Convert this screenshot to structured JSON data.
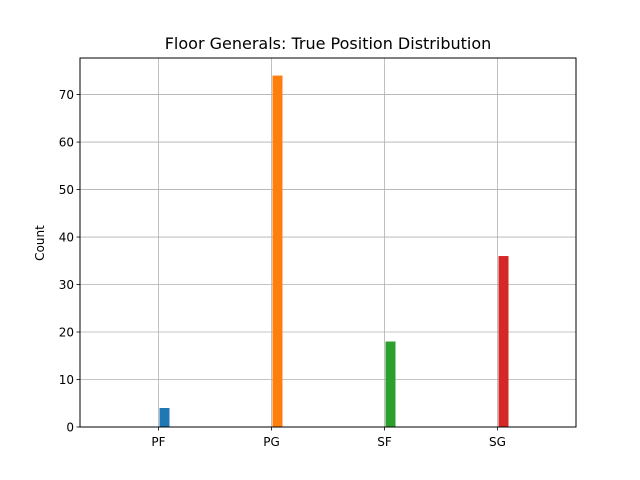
{
  "chart_data": {
    "type": "bar",
    "title": "Floor Generals: True Position Distribution",
    "xlabel": "",
    "ylabel": "Count",
    "categories": [
      "PF",
      "PG",
      "SF",
      "SG"
    ],
    "values": [
      4,
      74,
      18,
      36
    ],
    "colors": [
      "#1f77b4",
      "#ff7f0e",
      "#2ca02c",
      "#d62728"
    ],
    "ylim": [
      0,
      77.7
    ],
    "yticks": [
      0,
      10,
      20,
      30,
      40,
      50,
      60,
      70
    ],
    "grid": true,
    "legend": "none"
  }
}
